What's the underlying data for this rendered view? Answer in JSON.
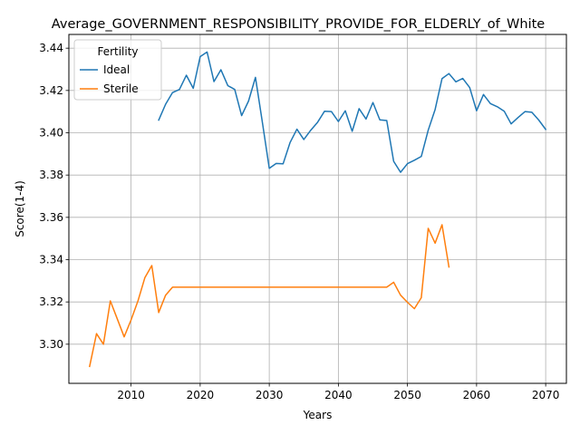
{
  "chart_data": {
    "type": "line",
    "title": "Average_GOVERNMENT_RESPONSIBILITY_PROVIDE_FOR_ELDERLY_of_White",
    "xlabel": "Years",
    "ylabel": "Score(1-4)",
    "xlim": [
      2001,
      2073
    ],
    "ylim": [
      3.2815,
      3.4465
    ],
    "xticks": [
      2010,
      2020,
      2030,
      2040,
      2050,
      2060,
      2070
    ],
    "yticks": [
      3.3,
      3.32,
      3.34,
      3.36,
      3.38,
      3.4,
      3.42,
      3.44
    ],
    "xtick_labels": [
      "2010",
      "2020",
      "2030",
      "2040",
      "2050",
      "2060",
      "2070"
    ],
    "ytick_labels": [
      "3.30",
      "3.32",
      "3.34",
      "3.36",
      "3.38",
      "3.40",
      "3.42",
      "3.44"
    ],
    "grid": true,
    "legend": {
      "title": "Fertility",
      "placement": "top-left"
    },
    "series": [
      {
        "name": "Ideal",
        "color": "#1f77b4",
        "x": [
          2014,
          2015,
          2016,
          2017,
          2018,
          2019,
          2020,
          2021,
          2022,
          2023,
          2024,
          2025,
          2026,
          2027,
          2028,
          2029,
          2030,
          2031,
          2032,
          2033,
          2034,
          2035,
          2036,
          2037,
          2038,
          2039,
          2040,
          2041,
          2042,
          2043,
          2044,
          2045,
          2046,
          2047,
          2048,
          2049,
          2050,
          2051,
          2052,
          2053,
          2054,
          2055,
          2056,
          2057,
          2058,
          2059,
          2060,
          2061,
          2062,
          2063,
          2064,
          2065,
          2066,
          2067,
          2068,
          2069,
          2070
        ],
        "y": [
          3.406,
          3.4135,
          3.419,
          3.4205,
          3.4272,
          3.421,
          3.436,
          3.4382,
          3.4242,
          3.4298,
          3.4223,
          3.4205,
          3.4081,
          3.415,
          3.4262,
          3.405,
          3.3832,
          3.3855,
          3.3853,
          3.3953,
          3.4017,
          3.3968,
          3.4012,
          3.405,
          3.4102,
          3.41,
          3.4053,
          3.4104,
          3.4007,
          3.4114,
          3.4065,
          3.4143,
          3.4061,
          3.4058,
          3.3865,
          3.3813,
          3.3854,
          3.387,
          3.3888,
          3.4012,
          3.411,
          3.4256,
          3.428,
          3.4241,
          3.4257,
          3.4214,
          3.4104,
          3.4181,
          3.4138,
          3.4123,
          3.4102,
          3.4042,
          3.4072,
          3.41,
          3.4097,
          3.406,
          3.4016
        ]
      },
      {
        "name": "Sterile",
        "color": "#ff7f0e",
        "x": [
          2004,
          2005,
          2006,
          2007,
          2008,
          2009,
          2010,
          2011,
          2012,
          2013,
          2014,
          2015,
          2016,
          2017,
          2018,
          2019,
          2020,
          2021,
          2022,
          2023,
          2024,
          2025,
          2026,
          2027,
          2028,
          2029,
          2030,
          2031,
          2032,
          2033,
          2034,
          2035,
          2036,
          2037,
          2038,
          2039,
          2040,
          2041,
          2042,
          2043,
          2044,
          2045,
          2046,
          2047,
          2048,
          2049,
          2050,
          2051,
          2052,
          2053,
          2054,
          2055,
          2056
        ],
        "y": [
          3.2895,
          3.305,
          3.3,
          3.3205,
          3.312,
          3.3035,
          3.3115,
          3.3205,
          3.3315,
          3.3372,
          3.315,
          3.3232,
          3.327,
          3.327,
          3.327,
          3.327,
          3.327,
          3.327,
          3.327,
          3.327,
          3.327,
          3.327,
          3.327,
          3.327,
          3.327,
          3.327,
          3.327,
          3.327,
          3.327,
          3.327,
          3.327,
          3.327,
          3.327,
          3.327,
          3.327,
          3.327,
          3.327,
          3.327,
          3.327,
          3.327,
          3.327,
          3.327,
          3.327,
          3.327,
          3.3293,
          3.3232,
          3.3198,
          3.3168,
          3.322,
          3.3548,
          3.3478,
          3.3565,
          3.3365
        ]
      }
    ]
  }
}
